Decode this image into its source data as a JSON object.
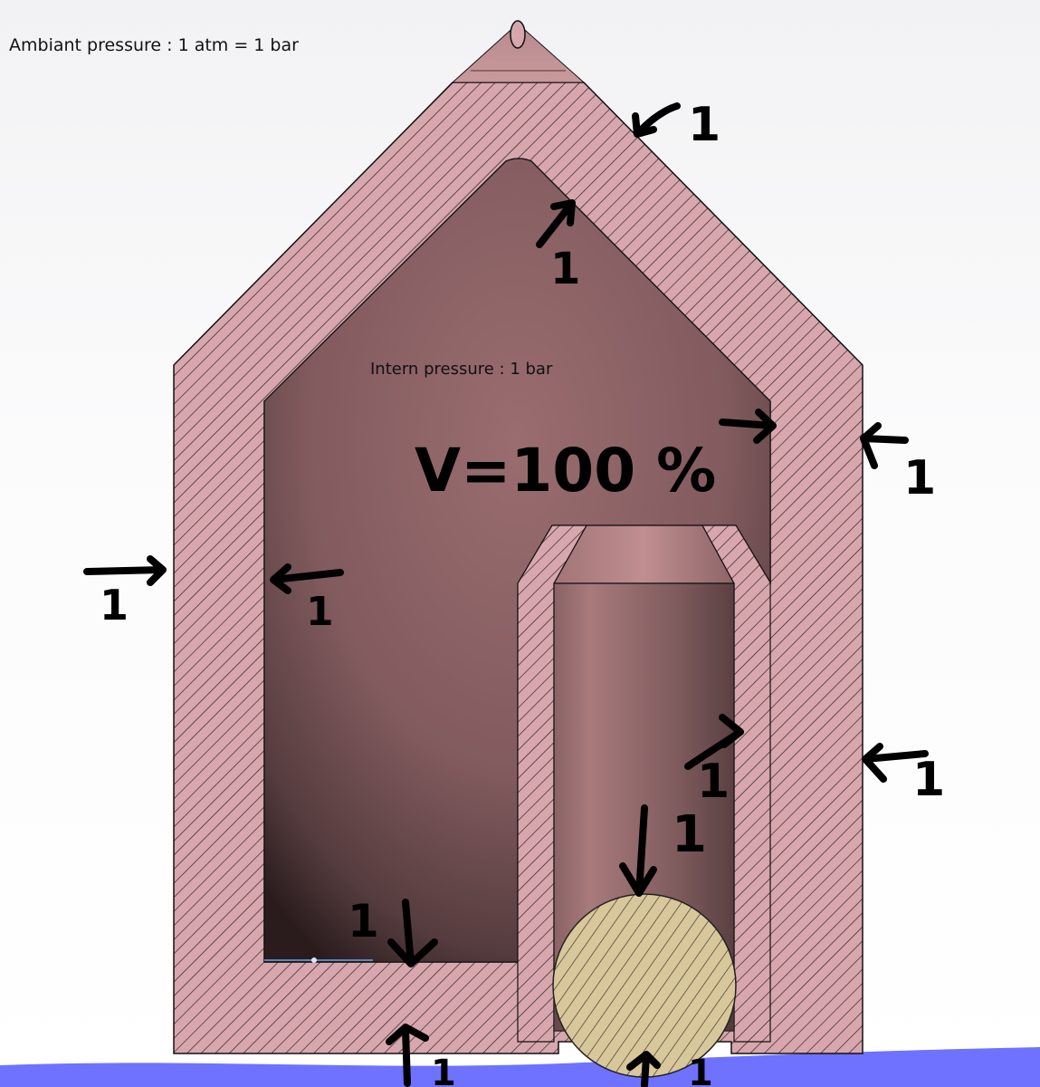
{
  "labels": {
    "ambient_pressure": "Ambiant pressure : 1 atm = 1 bar",
    "intern_pressure": "Intern pressure : 1 bar",
    "volume": "V=100 %"
  },
  "colors": {
    "wall": "#d7a7ad",
    "hatch": "#2a1a1c",
    "cavity_center": "#9a6d70",
    "cavity_edge": "#2a1c1d",
    "piston": "#d8c79b",
    "water": "#6f72ff",
    "outline": "#111111"
  },
  "pressure_value_label": "1"
}
